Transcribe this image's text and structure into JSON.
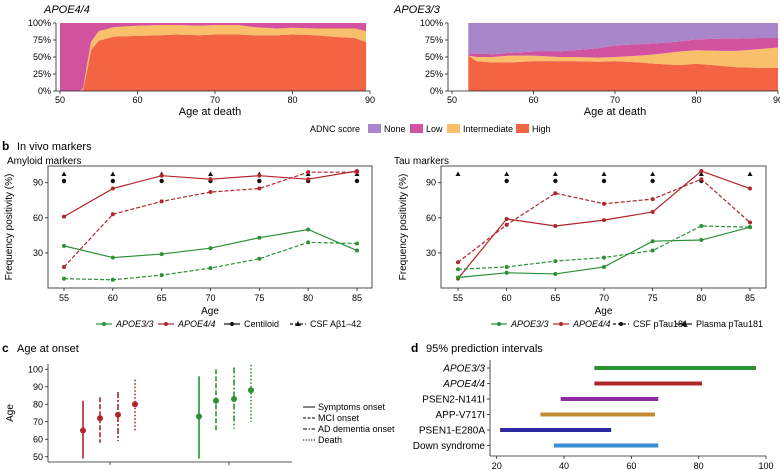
{
  "panel_a": {
    "left_title": "APOE4/4",
    "right_title": "APOE3/3",
    "xlabel": "Age at death",
    "legend_title": "ADNC score",
    "categories": [
      "None",
      "Low",
      "Intermediate",
      "High"
    ],
    "colors": {
      "None": "#a986c9",
      "Low": "#d1539f",
      "Intermediate": "#f9bf6b",
      "High": "#f26443"
    }
  },
  "panel_b": {
    "label": "b",
    "title": "In vivo markers",
    "legend_left": {
      "apoe33": "APOE3/3",
      "apoe44": "APOE4/4",
      "centiloid": "Centiloid",
      "csf": "CSF Aβ1–42"
    },
    "legend_right": {
      "apoe33": "APOE3/3",
      "apoe44": "APOE4/4",
      "csf": "CSF pTau181",
      "plasma": "Plasma pTau181"
    }
  },
  "panel_c": {
    "label": "c",
    "title": "Age at onset",
    "legend": [
      "Symptoms onset",
      "MCI onset",
      "AD dementia onset",
      "Death"
    ]
  },
  "panel_d": {
    "label": "d",
    "title": "95% prediction intervals"
  },
  "colors": {
    "apoe33": "#2a9135",
    "apoe44": "#b1252b",
    "black": "#111111"
  },
  "chart_data": [
    {
      "type": "area",
      "title": "APOE4/4",
      "xlabel": "Age at death",
      "ylabel": "",
      "xlim": [
        50,
        90
      ],
      "ylim": [
        0,
        100
      ],
      "xticks": [
        50,
        60,
        70,
        80,
        90
      ],
      "yticks": [
        "0%",
        "25%",
        "50%",
        "75%",
        "100%"
      ],
      "x": [
        50,
        51,
        52,
        52.5,
        53,
        53.5,
        54,
        55,
        57,
        60,
        63,
        65,
        68,
        70,
        73,
        75,
        78,
        80,
        83,
        85,
        88,
        89.5
      ],
      "series": [
        {
          "name": "High",
          "values": [
            0,
            0,
            0,
            0,
            2,
            30,
            60,
            74,
            80,
            81,
            82,
            83,
            82,
            83,
            83,
            82,
            82,
            83,
            82,
            80,
            78,
            72
          ]
        },
        {
          "name": "Intermediate",
          "values": [
            0,
            0,
            0,
            0,
            2,
            10,
            12,
            14,
            14,
            15,
            15,
            14,
            14,
            14,
            14,
            12,
            10,
            10,
            10,
            12,
            14,
            16
          ]
        },
        {
          "name": "Low",
          "values": [
            100,
            100,
            100,
            100,
            96,
            60,
            28,
            12,
            6,
            4,
            3,
            3,
            4,
            3,
            3,
            6,
            8,
            7,
            8,
            8,
            8,
            12
          ]
        },
        {
          "name": "None",
          "values": [
            0,
            0,
            0,
            0,
            0,
            0,
            0,
            0,
            0,
            0,
            0,
            0,
            0,
            0,
            0,
            0,
            0,
            0,
            0,
            0,
            0,
            0
          ]
        }
      ]
    },
    {
      "type": "area",
      "title": "APOE3/3",
      "xlabel": "Age at death",
      "ylabel": "",
      "xlim": [
        50,
        90
      ],
      "ylim": [
        0,
        100
      ],
      "xticks": [
        50,
        60,
        70,
        80,
        90
      ],
      "yticks": [
        "0%",
        "25%",
        "50%",
        "75%",
        "100%"
      ],
      "x": [
        52,
        53,
        55,
        57,
        60,
        63,
        65,
        68,
        70,
        73,
        75,
        78,
        80,
        83,
        85,
        88,
        90
      ],
      "series": [
        {
          "name": "High",
          "values": [
            52,
            44,
            42,
            42,
            44,
            44,
            44,
            43,
            44,
            42,
            40,
            38,
            40,
            37,
            35,
            34,
            34
          ]
        },
        {
          "name": "Intermediate",
          "values": [
            0,
            6,
            8,
            10,
            8,
            6,
            6,
            6,
            6,
            10,
            14,
            20,
            20,
            22,
            24,
            28,
            30
          ]
        },
        {
          "name": "Low",
          "values": [
            3,
            5,
            4,
            4,
            6,
            8,
            10,
            14,
            17,
            17,
            16,
            15,
            16,
            18,
            18,
            16,
            14
          ]
        },
        {
          "name": "None",
          "values": [
            45,
            45,
            46,
            44,
            42,
            42,
            40,
            37,
            33,
            31,
            30,
            27,
            24,
            23,
            23,
            22,
            22
          ]
        }
      ]
    },
    {
      "type": "line",
      "title": "Amyloid markers",
      "xlabel": "Age",
      "ylabel": "Frequency positivity (%)",
      "xlim": [
        55,
        85
      ],
      "ylim": [
        0,
        100
      ],
      "x": [
        55,
        60,
        65,
        70,
        75,
        80,
        85
      ],
      "yticks": [
        30,
        60,
        90
      ],
      "series": [
        {
          "name": "APOE4/4",
          "marker": "Centiloid",
          "dash": false,
          "values": [
            61,
            85,
            96,
            93,
            96,
            93,
            100
          ]
        },
        {
          "name": "APOE4/4",
          "marker": "CSF Aβ1–42",
          "dash": true,
          "values": [
            18,
            63,
            74,
            82,
            85,
            99,
            99
          ]
        },
        {
          "name": "APOE3/3",
          "marker": "Centiloid",
          "dash": false,
          "values": [
            36,
            26,
            29,
            34,
            43,
            50,
            32
          ]
        },
        {
          "name": "APOE3/3",
          "marker": "CSF Aβ1–42",
          "dash": true,
          "values": [
            8,
            7,
            11,
            17,
            25,
            39,
            38
          ]
        }
      ],
      "significance": {
        "triangle": [
          55,
          60,
          65,
          70,
          75,
          80,
          85
        ],
        "circle": [
          55,
          60,
          65,
          70,
          75,
          80,
          85
        ]
      }
    },
    {
      "type": "line",
      "title": "Tau markers",
      "xlabel": "Age",
      "ylabel": "Frequency positivity (%)",
      "xlim": [
        55,
        85
      ],
      "ylim": [
        0,
        100
      ],
      "x": [
        55,
        60,
        65,
        70,
        75,
        80,
        85
      ],
      "yticks": [
        30,
        60,
        90
      ],
      "series": [
        {
          "name": "APOE4/4",
          "marker": "Plasma pTau181",
          "dash": false,
          "values": [
            8,
            59,
            53,
            58,
            65,
            100,
            85
          ]
        },
        {
          "name": "APOE4/4",
          "marker": "CSF pTau181",
          "dash": true,
          "values": [
            22,
            54,
            81,
            72,
            76,
            93,
            56
          ]
        },
        {
          "name": "APOE3/3",
          "marker": "Plasma pTau181",
          "dash": false,
          "values": [
            9,
            13,
            12,
            18,
            40,
            41,
            52
          ]
        },
        {
          "name": "APOE3/3",
          "marker": "CSF pTau181",
          "dash": true,
          "values": [
            16,
            18,
            23,
            26,
            32,
            53,
            52
          ]
        }
      ],
      "significance": {
        "triangle": [
          55,
          60,
          65,
          70,
          75,
          80,
          85
        ],
        "circle": [
          60,
          65,
          70,
          75,
          80
        ]
      }
    },
    {
      "type": "scatter",
      "title": "Age at onset",
      "xlabel": "",
      "ylabel": "Age",
      "ylim": [
        47,
        103
      ],
      "yticks": [
        50,
        60,
        70,
        80,
        90,
        100
      ],
      "groups": [
        {
          "name": "APOE4/4",
          "points": [
            {
              "event": "Symptoms onset",
              "mean": 65,
              "low": 49,
              "high": 82
            },
            {
              "event": "MCI onset",
              "mean": 72,
              "low": 58,
              "high": 84
            },
            {
              "event": "AD dementia onset",
              "mean": 74,
              "low": 59,
              "high": 87
            },
            {
              "event": "Death",
              "mean": 80,
              "low": 65,
              "high": 94
            }
          ]
        },
        {
          "name": "APOE3/3",
          "points": [
            {
              "event": "Symptoms onset",
              "mean": 73,
              "low": 49,
              "high": 96
            },
            {
              "event": "MCI onset",
              "mean": 82,
              "low": 65,
              "high": 100
            },
            {
              "event": "AD dementia onset",
              "mean": 83,
              "low": 66,
              "high": 101
            },
            {
              "event": "Death",
              "mean": 88,
              "low": 70,
              "high": 104
            }
          ]
        }
      ]
    },
    {
      "type": "bar",
      "title": "95% prediction intervals",
      "xlabel": "",
      "xlim": [
        18,
        100
      ],
      "xticks": [
        20,
        40,
        60,
        80,
        100
      ],
      "categories": [
        "APOE3/3",
        "APOE4/4",
        "PSEN2-N141I",
        "APP-V717I",
        "PSEN1-E280A",
        "Down syndrome"
      ],
      "intervals": [
        [
          49,
          97
        ],
        [
          49,
          81
        ],
        [
          39,
          68
        ],
        [
          33,
          67
        ],
        [
          21,
          54
        ],
        [
          37,
          68
        ]
      ],
      "colors": [
        "#2a9135",
        "#b1252b",
        "#8e2aa3",
        "#c18b30",
        "#2b2aa3",
        "#3a8ed4"
      ]
    }
  ]
}
